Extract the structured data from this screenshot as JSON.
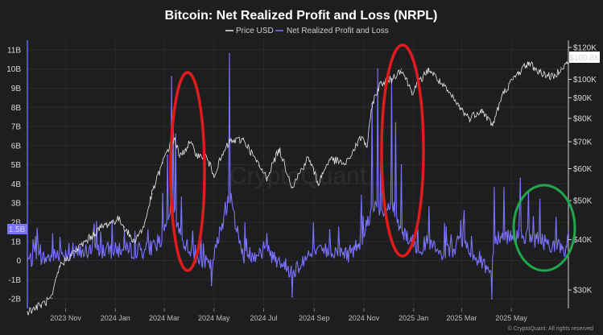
{
  "chart_data": {
    "type": "line",
    "title": "Bitcoin: Net Realized Profit and Loss (NRPL)",
    "legend": [
      {
        "name": "Price USD",
        "color": "#e8e8e8"
      },
      {
        "name": "Net Realized Profit and Loss",
        "color": "#7b73ff"
      }
    ],
    "legend_position": "top-center",
    "y_left": {
      "ticks": [
        "11B",
        "10B",
        "9B",
        "8B",
        "7B",
        "6B",
        "5B",
        "4B",
        "3B",
        "2B",
        "1B",
        "0",
        "-1B",
        "-2B"
      ],
      "values": [
        11,
        10,
        9,
        8,
        7,
        6,
        5,
        4,
        3,
        2,
        1,
        0,
        -1,
        -2
      ],
      "range": [
        -2.5,
        11.5
      ],
      "unit": "billion USD",
      "current_badge": "1.5B"
    },
    "y_right": {
      "ticks": [
        "$120K",
        "$100K",
        "$90K",
        "$80K",
        "$70K",
        "$60K",
        "$50K",
        "$40K",
        "$30K"
      ],
      "values": [
        120000,
        100000,
        90000,
        80000,
        70000,
        60000,
        50000,
        40000,
        30000
      ],
      "scale": "log",
      "current_badge": "$109.8K"
    },
    "x_ticks": [
      "2023 Nov",
      "2024 Jan",
      "2024 Mar",
      "2024 May",
      "2024 Jul",
      "2024 Sep",
      "2024 Nov",
      "2025 Jan",
      "2025 Mar",
      "2025 May"
    ],
    "x_range": [
      "2023-09-15",
      "2025-07-10"
    ],
    "grid": true,
    "series": [
      {
        "name": "Price USD",
        "x": [
          "2023-09-15",
          "2023-10-01",
          "2023-10-15",
          "2023-10-25",
          "2023-11-10",
          "2023-12-01",
          "2023-12-15",
          "2024-01-05",
          "2024-01-12",
          "2024-01-23",
          "2024-02-05",
          "2024-02-15",
          "2024-02-28",
          "2024-03-05",
          "2024-03-14",
          "2024-03-20",
          "2024-04-01",
          "2024-04-13",
          "2024-04-20",
          "2024-05-01",
          "2024-05-20",
          "2024-06-06",
          "2024-06-25",
          "2024-07-05",
          "2024-07-20",
          "2024-08-05",
          "2024-08-25",
          "2024-09-06",
          "2024-09-20",
          "2024-10-10",
          "2024-10-29",
          "2024-11-05",
          "2024-11-12",
          "2024-11-22",
          "2024-12-05",
          "2024-12-17",
          "2024-12-30",
          "2025-01-20",
          "2025-02-03",
          "2025-02-25",
          "2025-03-10",
          "2025-03-25",
          "2025-04-08",
          "2025-04-22",
          "2025-05-10",
          "2025-05-22",
          "2025-06-05",
          "2025-06-22",
          "2025-07-01",
          "2025-07-10"
        ],
        "values": [
          26500,
          27500,
          28600,
          34500,
          37000,
          40500,
          43000,
          45000,
          43000,
          39500,
          43000,
          52000,
          62000,
          67000,
          71000,
          64000,
          69500,
          64000,
          65000,
          58000,
          70000,
          71000,
          61000,
          57000,
          67000,
          54000,
          64000,
          55000,
          63500,
          61500,
          72000,
          68000,
          88000,
          98000,
          100000,
          106000,
          93000,
          106000,
          98000,
          86000,
          80000,
          84000,
          77000,
          93000,
          104000,
          110000,
          104000,
          101000,
          107000,
          109800
        ]
      },
      {
        "name": "Net Realized Profit and Loss",
        "x": [
          "2023-09-15",
          "2023-10-10",
          "2023-10-25",
          "2023-11-10",
          "2023-12-05",
          "2024-01-12",
          "2024-02-10",
          "2024-02-28",
          "2024-03-05",
          "2024-03-10",
          "2024-03-12",
          "2024-03-15",
          "2024-03-22",
          "2024-04-08",
          "2024-04-28",
          "2024-05-20",
          "2024-06-05",
          "2024-07-05",
          "2024-08-05",
          "2024-08-25",
          "2024-09-20",
          "2024-10-15",
          "2024-10-29",
          "2024-11-11",
          "2024-11-18",
          "2024-11-22",
          "2024-12-05",
          "2024-12-10",
          "2024-12-17",
          "2025-01-06",
          "2025-01-20",
          "2025-02-03",
          "2025-03-04",
          "2025-04-07",
          "2025-04-10",
          "2025-04-22",
          "2025-05-12",
          "2025-05-22",
          "2025-06-05",
          "2025-07-10"
        ],
        "values": [
          0,
          0.2,
          1.2,
          0.9,
          1.6,
          1.5,
          1.6,
          3.5,
          5.5,
          9.6,
          7.5,
          6.6,
          3.3,
          0.8,
          -1.3,
          10.8,
          0.6,
          1.4,
          -1.9,
          0.5,
          1.6,
          0.8,
          3.4,
          8.2,
          10.0,
          6.5,
          9.5,
          7.2,
          5.0,
          1.9,
          2.8,
          0.5,
          2.6,
          -2.0,
          3.8,
          3.8,
          4.3,
          3.6,
          3.2,
          1.5
        ]
      }
    ],
    "annotations": [
      {
        "shape": "ellipse",
        "color": "red",
        "around": "2024 Mar NRPL spike"
      },
      {
        "shape": "ellipse",
        "color": "red",
        "around": "2024 Nov-Dec NRPL spike"
      },
      {
        "shape": "ellipse",
        "color": "green",
        "around": "2025 Apr-Jun NRPL activity"
      }
    ],
    "watermark": "CryptoQuant",
    "footer": "© CryptoQuant. All rights reserved"
  }
}
